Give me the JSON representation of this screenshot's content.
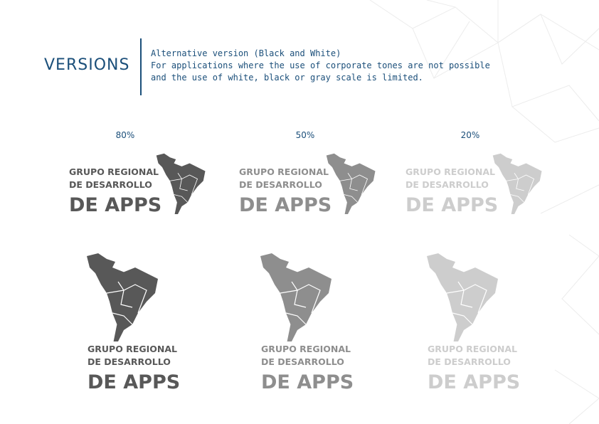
{
  "section": {
    "title": "VERSIONS",
    "description": [
      "Alternative version (Black and White)",
      "For applications where the use of corporate tones are not possible",
      "and the use of white, black or gray scale is limited."
    ]
  },
  "versions": [
    {
      "percent_label": "80%",
      "color": "#585858"
    },
    {
      "percent_label": "50%",
      "color": "#8e8e8e"
    },
    {
      "percent_label": "20%",
      "color": "#cdcdcd"
    }
  ],
  "logo": {
    "line1": "GRUPO REGIONAL",
    "line2": "DE DESARROLLO",
    "line3": "DE APPS",
    "icon": "latin-america-map-icon"
  },
  "colors": {
    "accent": "#1b4f7a",
    "background": "#ffffff"
  }
}
